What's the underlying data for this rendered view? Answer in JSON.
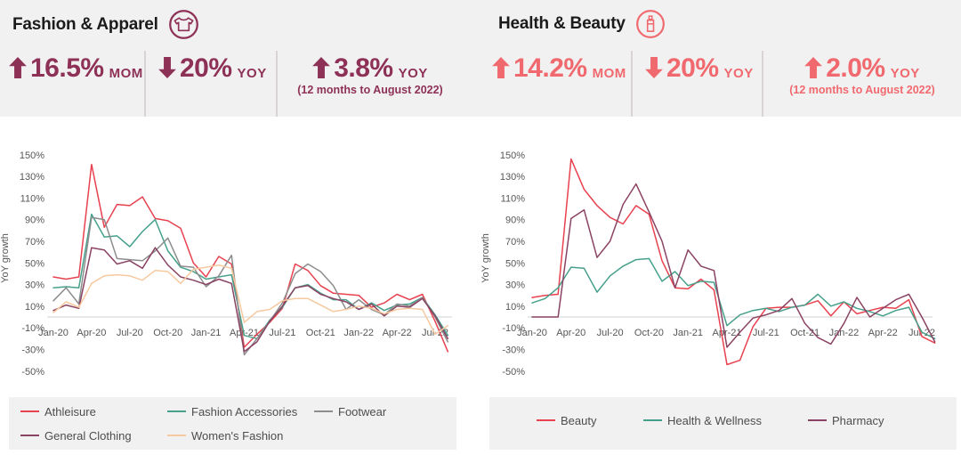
{
  "colors": {
    "band_bg": "#f2f1f1",
    "legend_bg": "#f2f1f1",
    "divider": "#d8d4d4",
    "title_text": "#1b1b1b",
    "axis_text": "#565656",
    "legend_text": "#4d4d4d",
    "fashion_accent": "#8e3157",
    "health_accent": "#f0696f"
  },
  "panels": [
    {
      "title": "Fashion & Apparel",
      "icon": "tshirt-icon",
      "stats": [
        {
          "direction": "up",
          "value": "16.5%",
          "unit": "MOM",
          "caption": ""
        },
        {
          "direction": "down",
          "value": "20%",
          "unit": "YOY",
          "caption": ""
        },
        {
          "direction": "up",
          "value": "3.8%",
          "unit": "YOY",
          "caption": "(12 months to August 2022)"
        }
      ],
      "chart_data": {
        "type": "line",
        "ylabel": "YoY growth",
        "ylim": [
          -50,
          150
        ],
        "yticks": [
          150,
          130,
          110,
          90,
          70,
          50,
          30,
          10,
          -10,
          -30,
          -50
        ],
        "grid": false,
        "legend_position": "bottom",
        "x": [
          "Jan-20",
          "Feb-20",
          "Mar-20",
          "Apr-20",
          "May-20",
          "Jun-20",
          "Jul-20",
          "Aug-20",
          "Sep-20",
          "Oct-20",
          "Nov-20",
          "Dec-20",
          "Jan-21",
          "Feb-21",
          "Mar-21",
          "Apr-21",
          "May-21",
          "Jun-21",
          "Jul-21",
          "Aug-21",
          "Sep-21",
          "Oct-21",
          "Nov-21",
          "Dec-21",
          "Jan-22",
          "Feb-22",
          "Mar-22",
          "Apr-22",
          "May-22",
          "Jun-22",
          "Jul-22",
          "Aug-22"
        ],
        "x_tick_labels": [
          "Jan-20",
          "Apr-20",
          "Jul-20",
          "Oct-20",
          "Jan-21",
          "Apr-21",
          "Jul-21",
          "Oct-21",
          "Jan-22",
          "Apr-22",
          "Jul-22"
        ],
        "x_tick_indices": [
          0,
          3,
          6,
          9,
          12,
          15,
          18,
          21,
          24,
          27,
          30
        ],
        "series": [
          {
            "name": "Athleisure",
            "color": "#e8414f",
            "values": [
              37,
              35,
              37,
              141,
              83,
              104,
              103,
              111,
              91,
              89,
              82,
              50,
              37,
              56,
              49,
              -28,
              -16,
              -5,
              8,
              49,
              43,
              29,
              22,
              21,
              20,
              9,
              13,
              21,
              16,
              21,
              -4,
              -32
            ]
          },
          {
            "name": "Fashion Accessories",
            "color": "#46a08b",
            "values": [
              27,
              28,
              27,
              95,
              74,
              75,
              65,
              79,
              90,
              61,
              46,
              42,
              35,
              37,
              39,
              -17,
              -20,
              -3,
              9,
              27,
              30,
              22,
              16,
              16,
              7,
              13,
              6,
              11,
              12,
              18,
              2,
              -17
            ]
          },
          {
            "name": "Footwear",
            "color": "#8d8d8d",
            "values": [
              15,
              27,
              12,
              92,
              90,
              54,
              53,
              52,
              61,
              73,
              47,
              46,
              28,
              38,
              57,
              -35,
              -20,
              -4,
              13,
              40,
              49,
              42,
              29,
              7,
              16,
              7,
              2,
              12,
              10,
              18,
              0,
              -23
            ]
          },
          {
            "name": "General Clothing",
            "color": "#8a4363",
            "values": [
              6,
              11,
              8,
              64,
              62,
              49,
              52,
              45,
              64,
              48,
              37,
              34,
              30,
              35,
              31,
              -32,
              -23,
              -4,
              10,
              27,
              29,
              21,
              17,
              14,
              7,
              12,
              1,
              10,
              9,
              17,
              1,
              -20
            ]
          },
          {
            "name": "Women's Fashion",
            "color": "#f6c9a0",
            "values": [
              4,
              14,
              9,
              31,
              38,
              39,
              38,
              34,
              43,
              42,
              31,
              44,
              46,
              48,
              45,
              -5,
              5,
              7,
              15,
              17,
              17,
              11,
              5,
              7,
              10,
              8,
              3,
              7,
              8,
              7,
              -16,
              -8
            ]
          }
        ]
      }
    },
    {
      "title": "Health & Beauty",
      "icon": "lipstick-icon",
      "stats": [
        {
          "direction": "up",
          "value": "14.2%",
          "unit": "MOM",
          "caption": ""
        },
        {
          "direction": "down",
          "value": "20%",
          "unit": "YOY",
          "caption": ""
        },
        {
          "direction": "up",
          "value": "2.0%",
          "unit": "YOY",
          "caption": "(12 months to August 2022)"
        }
      ],
      "chart_data": {
        "type": "line",
        "ylabel": "YoY growth",
        "ylim": [
          -50,
          150
        ],
        "yticks": [
          150,
          130,
          110,
          90,
          70,
          50,
          30,
          10,
          -10,
          -30,
          -50
        ],
        "grid": false,
        "legend_position": "bottom",
        "x": [
          "Jan-20",
          "Feb-20",
          "Mar-20",
          "Apr-20",
          "May-20",
          "Jun-20",
          "Jul-20",
          "Aug-20",
          "Sep-20",
          "Oct-20",
          "Nov-20",
          "Dec-20",
          "Jan-21",
          "Feb-21",
          "Mar-21",
          "Apr-21",
          "May-21",
          "Jun-21",
          "Jul-21",
          "Aug-21",
          "Sep-21",
          "Oct-21",
          "Nov-21",
          "Dec-21",
          "Jan-22",
          "Feb-22",
          "Mar-22",
          "Apr-22",
          "May-22",
          "Jun-22",
          "Jul-22",
          "Aug-22"
        ],
        "x_tick_labels": [
          "Jan-20",
          "Apr-20",
          "Jul-20",
          "Oct-20",
          "Jan-21",
          "Apr-21",
          "Jul-21",
          "Oct-21",
          "Jan-22",
          "Apr-22",
          "Jul-22"
        ],
        "x_tick_indices": [
          0,
          3,
          6,
          9,
          12,
          15,
          18,
          21,
          24,
          27,
          30
        ],
        "series": [
          {
            "name": "Beauty",
            "color": "#e8414f",
            "values": [
              18,
              20,
              21,
              146,
              118,
              103,
              92,
              86,
              103,
              95,
              52,
              27,
              26,
              35,
              25,
              -44,
              -40,
              -9,
              8,
              9,
              9,
              11,
              15,
              1,
              14,
              3,
              6,
              9,
              8,
              16,
              -18,
              -24
            ]
          },
          {
            "name": "Health & Wellness",
            "color": "#46a08b",
            "values": [
              13,
              17,
              27,
              46,
              45,
              23,
              38,
              47,
              53,
              54,
              33,
              42,
              29,
              33,
              32,
              -8,
              2,
              6,
              8,
              5,
              9,
              11,
              21,
              10,
              14,
              8,
              5,
              1,
              6,
              9,
              -14,
              -20
            ]
          },
          {
            "name": "Pharmacy",
            "color": "#8a4363",
            "values": [
              0,
              0,
              0,
              91,
              99,
              55,
              70,
              104,
              123,
              97,
              70,
              27,
              62,
              47,
              43,
              -28,
              -14,
              -1,
              2,
              6,
              17,
              -6,
              -19,
              -25,
              -6,
              18,
              0,
              8,
              16,
              21,
              0,
              -23
            ]
          }
        ]
      }
    }
  ]
}
